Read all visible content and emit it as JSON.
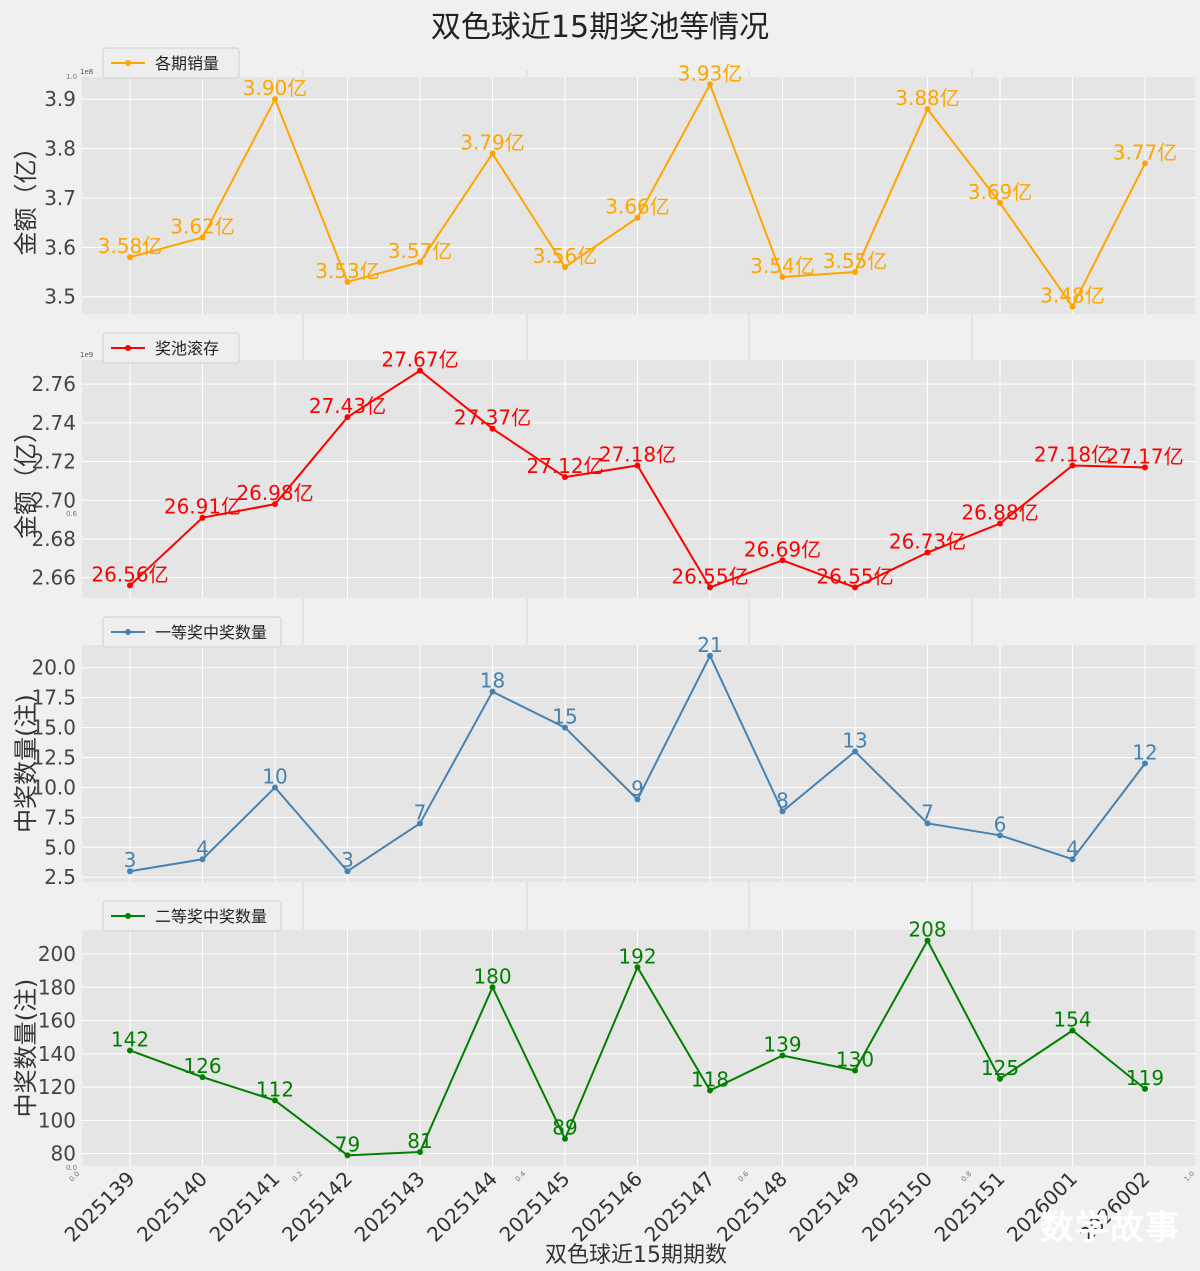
{
  "title": "双色球近15期奖池等情况",
  "watermark": "数学故事",
  "chart_data": [
    {
      "type": "line",
      "legend": "各期销量",
      "ylabel": "金额（亿）",
      "color": "#FFA500",
      "scale_note": "1e8",
      "categories": [
        "2025139",
        "2025140",
        "2025141",
        "2025142",
        "2025143",
        "2025144",
        "2025145",
        "2025146",
        "2025147",
        "2025148",
        "2025149",
        "2025150",
        "2025151",
        "2026001",
        "2026002"
      ],
      "values": [
        3.58,
        3.62,
        3.9,
        3.53,
        3.57,
        3.79,
        3.56,
        3.66,
        3.93,
        3.54,
        3.55,
        3.88,
        3.69,
        3.48,
        3.77
      ],
      "point_labels": [
        "3.58亿",
        "3.62亿",
        "3.90亿",
        "3.53亿",
        "3.57亿",
        "3.79亿",
        "3.56亿",
        "3.66亿",
        "3.93亿",
        "3.54亿",
        "3.55亿",
        "3.88亿",
        "3.69亿",
        "3.48亿",
        "3.77亿"
      ],
      "yticks": [
        "3.5",
        "3.6",
        "3.7",
        "3.8",
        "3.9"
      ],
      "ylim": [
        3.465,
        3.945
      ]
    },
    {
      "type": "line",
      "legend": "奖池滚存",
      "ylabel": "金额（亿）",
      "color": "#FF0000",
      "scale_note": "1e9",
      "categories": [
        "2025139",
        "2025140",
        "2025141",
        "2025142",
        "2025143",
        "2025144",
        "2025145",
        "2025146",
        "2025147",
        "2025148",
        "2025149",
        "2025150",
        "2025151",
        "2026001",
        "2026002"
      ],
      "values": [
        26.56,
        26.91,
        26.98,
        27.43,
        27.67,
        27.37,
        27.12,
        27.18,
        26.55,
        26.69,
        26.55,
        26.73,
        26.88,
        27.18,
        27.17
      ],
      "point_labels": [
        "26.56亿",
        "26.91亿",
        "26.98亿",
        "27.43亿",
        "27.67亿",
        "27.37亿",
        "27.12亿",
        "27.18亿",
        "26.55亿",
        "26.69亿",
        "26.55亿",
        "26.73亿",
        "26.88亿",
        "27.18亿",
        "27.17亿"
      ],
      "yticks": [
        "2.66",
        "2.68",
        "2.70",
        "2.72",
        "2.74",
        "2.76"
      ],
      "ylim": [
        26.495,
        27.725
      ]
    },
    {
      "type": "line",
      "legend": "一等奖中奖数量",
      "ylabel": "中奖数量(注)",
      "color": "#4682B4",
      "categories": [
        "2025139",
        "2025140",
        "2025141",
        "2025142",
        "2025143",
        "2025144",
        "2025145",
        "2025146",
        "2025147",
        "2025148",
        "2025149",
        "2025150",
        "2025151",
        "2026001",
        "2026002"
      ],
      "values": [
        3,
        4,
        10,
        3,
        7,
        18,
        15,
        9,
        21,
        8,
        13,
        7,
        6,
        4,
        12
      ],
      "point_labels": [
        "3",
        "4",
        "10",
        "3",
        "7",
        "18",
        "15",
        "9",
        "21",
        "8",
        "13",
        "7",
        "6",
        "4",
        "12"
      ],
      "yticks": [
        "2.5",
        "5.0",
        "7.5",
        "10.0",
        "12.5",
        "15.0",
        "17.5",
        "20.0"
      ],
      "ylim": [
        2.1,
        21.9
      ]
    },
    {
      "type": "line",
      "legend": "二等奖中奖数量",
      "ylabel": "中奖数量(注)",
      "color": "#008000",
      "categories": [
        "2025139",
        "2025140",
        "2025141",
        "2025142",
        "2025143",
        "2025144",
        "2025145",
        "2025146",
        "2025147",
        "2025148",
        "2025149",
        "2025150",
        "2025151",
        "2026001",
        "2026002"
      ],
      "values": [
        142,
        126,
        112,
        79,
        81,
        180,
        89,
        192,
        118,
        139,
        130,
        208,
        125,
        154,
        119
      ],
      "point_labels": [
        "142",
        "126",
        "112",
        "79",
        "81",
        "180",
        "89",
        "192",
        "118",
        "139",
        "130",
        "208",
        "125",
        "154",
        "119"
      ],
      "yticks": [
        "80",
        "100",
        "120",
        "140",
        "160",
        "180",
        "200"
      ],
      "ylim": [
        72.6,
        214.4
      ]
    }
  ],
  "xlabel": "双色球近15期期数",
  "frac_ticks": [
    "0.0",
    "0.2",
    "0.4",
    "0.6",
    "0.8",
    "1.0"
  ],
  "corner_labels": [
    "1.0",
    "0.6",
    "0.0",
    "0.0"
  ]
}
